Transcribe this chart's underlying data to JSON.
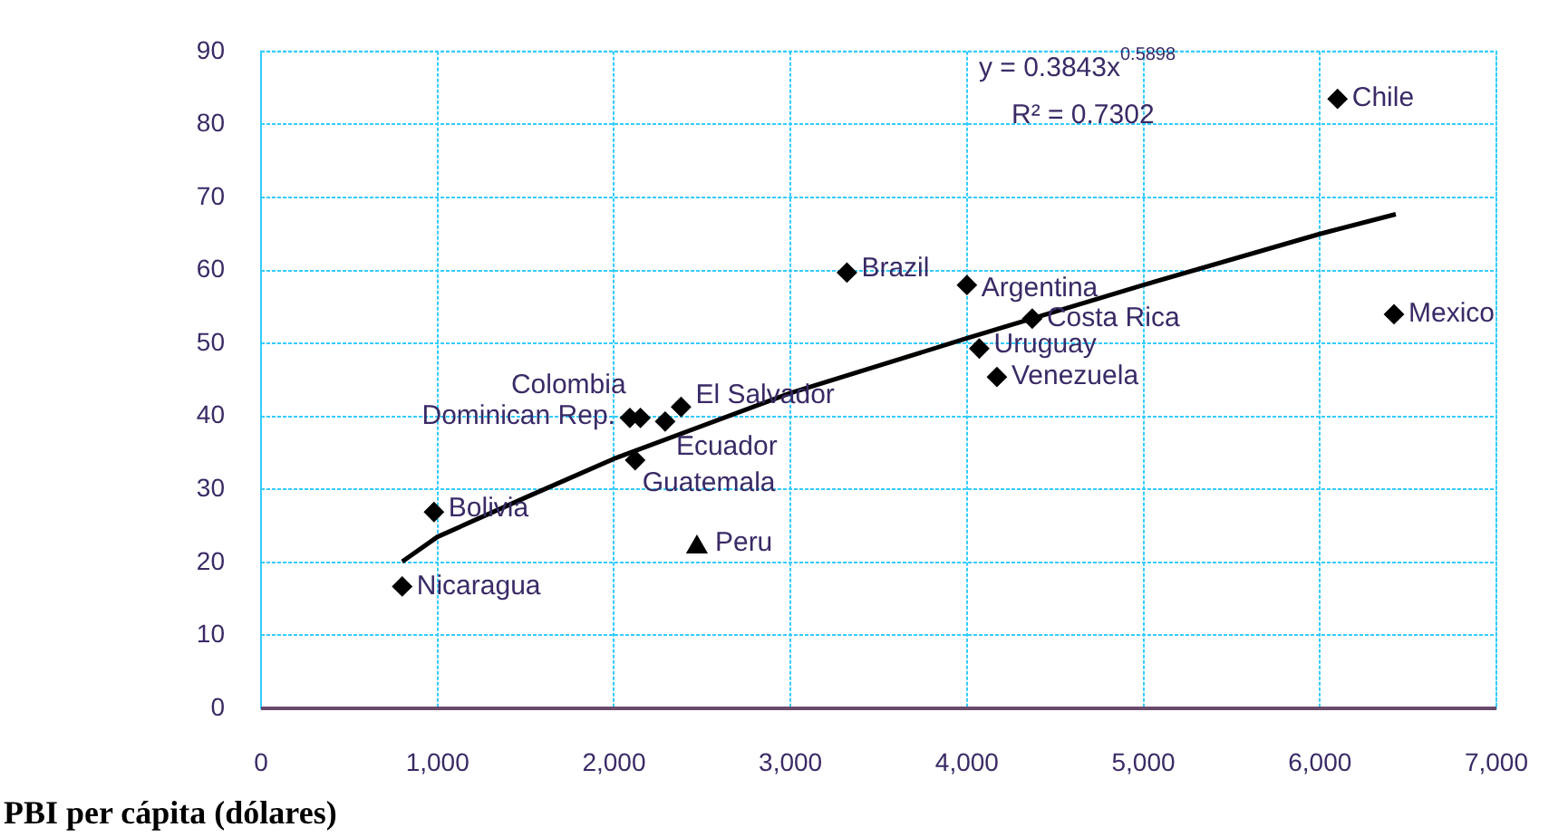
{
  "chart_data": {
    "type": "scatter",
    "xlabel": "PBI per cápita (dólares)",
    "xlim": [
      0,
      7000
    ],
    "xticks": [
      {
        "value": 0,
        "label": "0"
      },
      {
        "value": 1000,
        "label": "1,000"
      },
      {
        "value": 2000,
        "label": "2,000"
      },
      {
        "value": 3000,
        "label": "3,000"
      },
      {
        "value": 4000,
        "label": "4,000"
      },
      {
        "value": 5000,
        "label": "5,000"
      },
      {
        "value": 6000,
        "label": "6,000"
      },
      {
        "value": 7000,
        "label": "7,000"
      }
    ],
    "ylim": [
      0,
      90
    ],
    "yticks": [
      0,
      10,
      20,
      30,
      40,
      50,
      60,
      70,
      80,
      90
    ],
    "grid": true,
    "legend": false,
    "marker": "diamond",
    "annotations": [
      "y = 0.3843x$^{0.5898}$",
      "R² = 0.7302"
    ],
    "series": [
      {
        "name": "Chile",
        "color": "#000000",
        "x": [
          6100
        ],
        "values": [
          83.5
        ]
      },
      {
        "name": "Mexico",
        "color": "#000000",
        "x": [
          6420
        ],
        "values": [
          54
        ]
      },
      {
        "name": "Brazil",
        "color": "#000000",
        "x": [
          3320
        ],
        "values": [
          59.7
        ]
      },
      {
        "name": "Argentina",
        "color": "#000000",
        "x": [
          4000
        ],
        "values": [
          58
        ]
      },
      {
        "name": "Costa Rica",
        "color": "#000000",
        "x": [
          4370
        ],
        "values": [
          53.4
        ]
      },
      {
        "name": "Uruguay",
        "color": "#000000",
        "x": [
          4070
        ],
        "values": [
          49.3
        ]
      },
      {
        "name": "Venezuela",
        "color": "#000000",
        "x": [
          4170
        ],
        "values": [
          45.4
        ]
      },
      {
        "name": "Dominican Rep.",
        "color": "#000000",
        "x": [
          2090
        ],
        "values": [
          39.8
        ]
      },
      {
        "name": "Colombia",
        "color": "#000000",
        "x": [
          2150
        ],
        "values": [
          39.8
        ]
      },
      {
        "name": "Ecuador",
        "color": "#000000",
        "x": [
          2290
        ],
        "values": [
          39.3
        ]
      },
      {
        "name": "El Salvador",
        "color": "#000000",
        "x": [
          2380
        ],
        "values": [
          41.3
        ]
      },
      {
        "name": "Guatemala",
        "color": "#000000",
        "x": [
          2120
        ],
        "values": [
          34
        ]
      },
      {
        "name": "Bolivia",
        "color": "#000000",
        "x": [
          980
        ],
        "values": [
          26.9
        ]
      },
      {
        "name": "Peru",
        "color": "#000000",
        "marker": "triangle",
        "x": [
          2470
        ],
        "values": [
          22.1
        ]
      },
      {
        "name": "Nicaragua",
        "color": "#000000",
        "x": [
          800
        ],
        "values": [
          16.7
        ]
      },
      {
        "type": "line",
        "color": "#000000",
        "marker": "none",
        "x": [
          800,
          1000,
          1500,
          2000,
          3000,
          4000,
          5000,
          6000,
          6430
        ],
        "values": [
          20.1,
          23.5,
          28.9,
          34.2,
          43.2,
          50.7,
          58,
          65,
          67.7
        ]
      }
    ]
  }
}
